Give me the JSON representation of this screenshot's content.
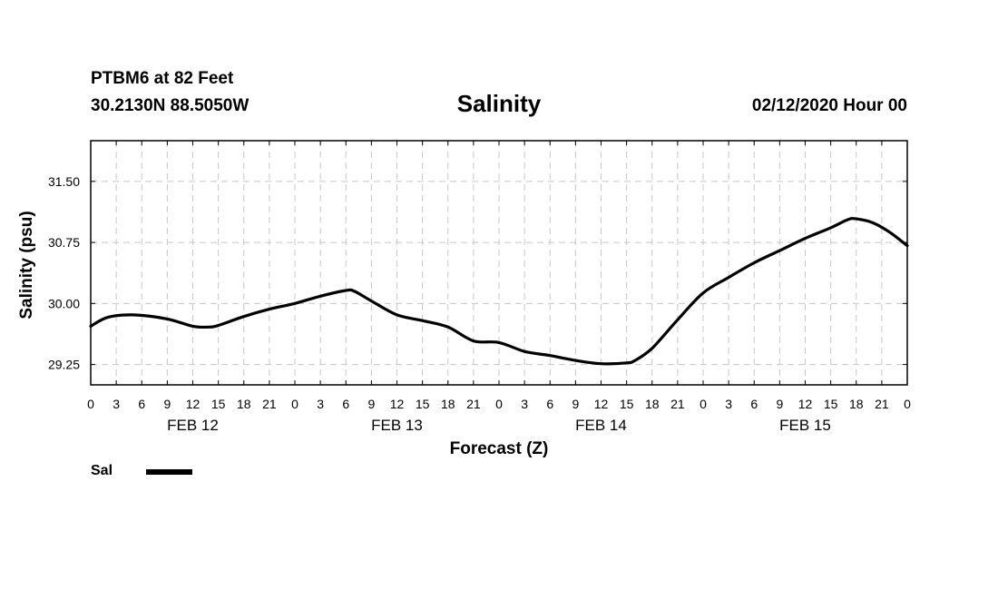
{
  "header": {
    "station": "PTBM6 at 82 Feet",
    "coords": "30.2130N 88.5050W",
    "title": "Salinity",
    "run_time": "02/12/2020 Hour 00"
  },
  "legend": {
    "label": "Sal",
    "color": "#000000"
  },
  "chart_data": {
    "type": "line",
    "title": "Salinity",
    "xlabel": "Forecast (Z)",
    "ylabel": "Salinity (psu)",
    "xlim": [
      0,
      96
    ],
    "ylim": [
      29.0,
      32.0
    ],
    "y_ticks": [
      29.25,
      30.0,
      30.75,
      31.5
    ],
    "y_tick_labels": [
      "29.25",
      "30.00",
      "30.75",
      "31.50"
    ],
    "x_ticks": [
      0,
      3,
      6,
      9,
      12,
      15,
      18,
      21,
      24,
      27,
      30,
      33,
      36,
      39,
      42,
      45,
      48,
      51,
      54,
      57,
      60,
      63,
      66,
      69,
      72,
      75,
      78,
      81,
      84,
      87,
      90,
      93,
      96
    ],
    "x_tick_labels": [
      "0",
      "3",
      "6",
      "9",
      "12",
      "15",
      "18",
      "21",
      "0",
      "3",
      "6",
      "9",
      "12",
      "15",
      "18",
      "21",
      "0",
      "3",
      "6",
      "9",
      "12",
      "15",
      "18",
      "21",
      "0",
      "3",
      "6",
      "9",
      "12",
      "15",
      "18",
      "21",
      "0"
    ],
    "day_labels": [
      {
        "x": 12,
        "label": "FEB 12"
      },
      {
        "x": 36,
        "label": "FEB 13"
      },
      {
        "x": 60,
        "label": "FEB 14"
      },
      {
        "x": 84,
        "label": "FEB 15"
      }
    ],
    "grid": true,
    "series": [
      {
        "name": "Sal",
        "color": "#000000",
        "x": [
          0,
          2,
          5,
          9,
          12,
          14,
          15,
          18,
          21,
          24,
          27,
          30,
          31,
          33,
          36,
          39,
          42,
          45,
          48,
          51,
          54,
          57,
          60,
          63,
          64,
          66,
          69,
          72,
          75,
          78,
          81,
          84,
          87,
          89,
          90,
          92,
          94,
          96
        ],
        "y": [
          29.72,
          29.83,
          29.86,
          29.81,
          29.72,
          29.71,
          29.73,
          29.84,
          29.93,
          30.0,
          30.09,
          30.16,
          30.15,
          30.03,
          29.86,
          29.79,
          29.71,
          29.54,
          29.52,
          29.41,
          29.36,
          29.3,
          29.26,
          29.27,
          29.3,
          29.45,
          29.8,
          30.13,
          30.32,
          30.5,
          30.65,
          30.8,
          30.93,
          31.03,
          31.04,
          30.99,
          30.87,
          30.71
        ]
      }
    ]
  }
}
